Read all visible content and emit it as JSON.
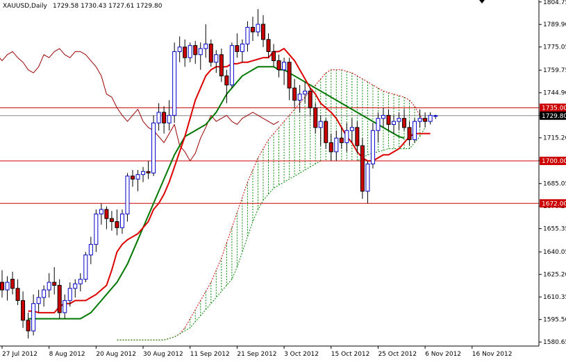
{
  "header": {
    "symbol": "XAUUSD,Daily",
    "ohlc": "1729.58 1730.43 1727.61 1729.80"
  },
  "colors": {
    "bull": "#0000cc",
    "bear": "#cc0000",
    "tenkan": "#dd0000",
    "kijun": "#007700",
    "chikou": "#990000",
    "cloud_bull": "#008800",
    "cloud_bear": "#cc0000",
    "level": "#cc0000",
    "price_line": "#888888",
    "tag_fill": "#cc0000",
    "current_tag_fill": "#000000"
  },
  "chart_data": {
    "type": "candlestick",
    "ylim": [
      1578,
      1806
    ],
    "y_ticks": [
      "1804.75",
      "1789.90",
      "1775.05",
      "1759.75",
      "1744.90",
      "1730.05",
      "1715.20",
      "1700.35",
      "1685.05",
      "1670.20",
      "1655.35",
      "1640.05",
      "1625.20",
      "1610.35",
      "1595.50",
      "1580.65"
    ],
    "x_ticks": [
      {
        "label": "27 Jul 2012",
        "index": 0
      },
      {
        "label": "8 Aug 2012",
        "index": 9
      },
      {
        "label": "20 Aug 2012",
        "index": 18
      },
      {
        "label": "30 Aug 2012",
        "index": 27
      },
      {
        "label": "11 Sep 2012",
        "index": 36
      },
      {
        "label": "21 Sep 2012",
        "index": 45
      },
      {
        "label": "3 Oct 2012",
        "index": 54
      },
      {
        "label": "15 Oct 2012",
        "index": 63
      },
      {
        "label": "25 Oct 2012",
        "index": 72
      },
      {
        "label": "6 Nov 2012",
        "index": 81
      },
      {
        "label": "16 Nov 2012",
        "index": 90
      }
    ],
    "candles": [
      [
        1620,
        1628,
        1610,
        1615
      ],
      [
        1615,
        1624,
        1608,
        1620
      ],
      [
        1622,
        1627,
        1612,
        1616
      ],
      [
        1616,
        1622,
        1605,
        1608
      ],
      [
        1608,
        1614,
        1590,
        1595
      ],
      [
        1595,
        1600,
        1583,
        1588
      ],
      [
        1588,
        1612,
        1585,
        1606
      ],
      [
        1606,
        1615,
        1600,
        1610
      ],
      [
        1610,
        1618,
        1604,
        1615
      ],
      [
        1615,
        1626,
        1610,
        1620
      ],
      [
        1620,
        1630,
        1612,
        1618
      ],
      [
        1618,
        1622,
        1596,
        1600
      ],
      [
        1600,
        1612,
        1596,
        1608
      ],
      [
        1608,
        1620,
        1604,
        1616
      ],
      [
        1616,
        1622,
        1610,
        1619
      ],
      [
        1619,
        1626,
        1614,
        1622
      ],
      [
        1622,
        1640,
        1620,
        1638
      ],
      [
        1638,
        1650,
        1632,
        1645
      ],
      [
        1645,
        1668,
        1640,
        1665
      ],
      [
        1665,
        1672,
        1658,
        1668
      ],
      [
        1668,
        1670,
        1655,
        1662
      ],
      [
        1662,
        1667,
        1654,
        1660
      ],
      [
        1660,
        1668,
        1651,
        1656
      ],
      [
        1656,
        1668,
        1652,
        1665
      ],
      [
        1665,
        1692,
        1660,
        1690
      ],
      [
        1690,
        1694,
        1683,
        1688
      ],
      [
        1688,
        1694,
        1680,
        1691
      ],
      [
        1691,
        1696,
        1686,
        1693
      ],
      [
        1693,
        1700,
        1688,
        1692
      ],
      [
        1692,
        1730,
        1690,
        1725
      ],
      [
        1725,
        1738,
        1720,
        1732
      ],
      [
        1732,
        1736,
        1718,
        1725
      ],
      [
        1725,
        1740,
        1720,
        1730
      ],
      [
        1730,
        1778,
        1725,
        1772
      ],
      [
        1772,
        1782,
        1765,
        1775
      ],
      [
        1775,
        1780,
        1762,
        1768
      ],
      [
        1768,
        1778,
        1765,
        1776
      ],
      [
        1776,
        1779,
        1764,
        1770
      ],
      [
        1770,
        1778,
        1760,
        1774
      ],
      [
        1774,
        1790,
        1768,
        1777
      ],
      [
        1777,
        1780,
        1762,
        1765
      ],
      [
        1765,
        1773,
        1758,
        1770
      ],
      [
        1770,
        1774,
        1752,
        1756
      ],
      [
        1756,
        1760,
        1738,
        1750
      ],
      [
        1750,
        1778,
        1748,
        1776
      ],
      [
        1776,
        1784,
        1768,
        1772
      ],
      [
        1772,
        1780,
        1765,
        1777
      ],
      [
        1777,
        1792,
        1772,
        1788
      ],
      [
        1788,
        1795,
        1779,
        1785
      ],
      [
        1785,
        1800,
        1782,
        1790
      ],
      [
        1790,
        1796,
        1775,
        1780
      ],
      [
        1780,
        1784,
        1768,
        1772
      ],
      [
        1772,
        1777,
        1762,
        1766
      ],
      [
        1766,
        1770,
        1755,
        1760
      ],
      [
        1760,
        1768,
        1750,
        1765
      ],
      [
        1765,
        1768,
        1740,
        1748
      ],
      [
        1748,
        1754,
        1735,
        1740
      ],
      [
        1740,
        1750,
        1732,
        1744
      ],
      [
        1744,
        1752,
        1738,
        1746
      ],
      [
        1746,
        1748,
        1730,
        1735
      ],
      [
        1735,
        1738,
        1718,
        1722
      ],
      [
        1722,
        1730,
        1710,
        1726
      ],
      [
        1726,
        1728,
        1708,
        1712
      ],
      [
        1712,
        1718,
        1700,
        1706
      ],
      [
        1706,
        1720,
        1700,
        1715
      ],
      [
        1715,
        1722,
        1708,
        1712
      ],
      [
        1712,
        1725,
        1706,
        1720
      ],
      [
        1720,
        1728,
        1712,
        1722
      ],
      [
        1722,
        1726,
        1705,
        1710
      ],
      [
        1710,
        1715,
        1675,
        1680
      ],
      [
        1680,
        1700,
        1672,
        1698
      ],
      [
        1698,
        1725,
        1695,
        1720
      ],
      [
        1720,
        1732,
        1712,
        1728
      ],
      [
        1728,
        1735,
        1722,
        1730
      ],
      [
        1730,
        1734,
        1720,
        1724
      ],
      [
        1724,
        1730,
        1718,
        1726
      ],
      [
        1726,
        1732,
        1720,
        1728
      ],
      [
        1728,
        1734,
        1720,
        1722
      ],
      [
        1722,
        1726,
        1710,
        1714
      ],
      [
        1714,
        1728,
        1712,
        1726
      ],
      [
        1726,
        1734,
        1722,
        1728
      ],
      [
        1728,
        1732,
        1722,
        1726
      ],
      [
        1726,
        1732,
        1724,
        1730
      ],
      [
        1729.58,
        1730.43,
        1727.61,
        1729.8
      ]
    ],
    "tenkan": [
      1601,
      1601,
      1600,
      1600,
      1600,
      1600,
      1604,
      1606,
      1606,
      1608,
      1608,
      1608,
      1610,
      1612,
      1615,
      1618,
      1628,
      1640,
      1645,
      1648,
      1650,
      1652,
      1656,
      1660,
      1668,
      1672,
      1678,
      1686,
      1696,
      1706,
      1716,
      1728,
      1740,
      1748,
      1756,
      1760,
      1762,
      1762,
      1762,
      1764,
      1764,
      1765,
      1765,
      1766,
      1767,
      1768,
      1768,
      1772,
      1772,
      1774,
      1770,
      1766,
      1760,
      1754,
      1748,
      1744,
      1738,
      1735,
      1732,
      1728,
      1722,
      1716,
      1712,
      1706,
      1702,
      1700,
      1700,
      1702,
      1704,
      1704,
      1706,
      1708,
      1712,
      1716,
      1718,
      1718,
      1718,
      1718
    ],
    "tenkan_x_offset": 5,
    "kijun": [
      1596,
      1596,
      1596,
      1596,
      1596,
      1596,
      1596,
      1596,
      1596,
      1596,
      1596,
      1598,
      1600,
      1604,
      1608,
      1612,
      1616,
      1620,
      1626,
      1632,
      1640,
      1648,
      1656,
      1664,
      1672,
      1680,
      1688,
      1696,
      1704,
      1710,
      1716,
      1718,
      1720,
      1722,
      1724,
      1728,
      1732,
      1738,
      1744,
      1748,
      1752,
      1756,
      1758,
      1760,
      1762,
      1762,
      1762,
      1762,
      1760,
      1760,
      1758,
      1756,
      1754,
      1752,
      1750,
      1748,
      1746,
      1744,
      1742,
      1740,
      1738,
      1736,
      1734,
      1732,
      1730,
      1728,
      1726,
      1724,
      1722,
      1720,
      1718,
      1716,
      1715
    ],
    "kijun_x_offset": 5,
    "chikou": [
      1760,
      1768,
      1772,
      1770,
      1766,
      1770,
      1772,
      1768,
      1765,
      1760,
      1758,
      1762,
      1770,
      1768,
      1772,
      1774,
      1770,
      1768,
      1772,
      1772,
      1770,
      1766,
      1762,
      1756,
      1744,
      1742,
      1735,
      1730,
      1726,
      1730,
      1734,
      1726,
      1722,
      1720,
      1716,
      1712,
      1718,
      1724,
      1710,
      1706,
      1700,
      1705,
      1715,
      1722,
      1730,
      1726,
      1728,
      1730,
      1726,
      1724,
      1728,
      1730,
      1732,
      1730,
      1728,
      1726,
      1724,
      1726
    ],
    "chikou_x_offset": -4,
    "cloud_upper": [
      1582,
      1582,
      1582,
      1582,
      1582,
      1582,
      1582,
      1582,
      1582,
      1582,
      1583,
      1584,
      1586,
      1590,
      1596,
      1602,
      1608,
      1614,
      1620,
      1628,
      1636,
      1646,
      1656,
      1666,
      1676,
      1686,
      1694,
      1702,
      1708,
      1714,
      1718,
      1722,
      1726,
      1730,
      1734,
      1738,
      1742,
      1746,
      1750,
      1754,
      1758,
      1760,
      1760,
      1760,
      1759,
      1758,
      1756,
      1754,
      1752,
      1750,
      1748,
      1746,
      1745,
      1744,
      1743,
      1742,
      1740,
      1736,
      1730,
      1725
    ],
    "cloud_lower": [
      1582,
      1582,
      1582,
      1582,
      1582,
      1582,
      1582,
      1582,
      1582,
      1582,
      1583,
      1584,
      1586,
      1588,
      1590,
      1594,
      1598,
      1602,
      1606,
      1610,
      1614,
      1618,
      1622,
      1630,
      1640,
      1650,
      1660,
      1668,
      1674,
      1678,
      1682,
      1684,
      1686,
      1688,
      1690,
      1692,
      1694,
      1696,
      1698,
      1700,
      1700,
      1700,
      1700,
      1700,
      1700,
      1700,
      1700,
      1702,
      1704,
      1705,
      1706,
      1707,
      1708,
      1708,
      1708,
      1708,
      1708,
      1712,
      1716,
      1722
    ],
    "cloud_x_offset": 22,
    "levels": [
      {
        "label": "1735.00",
        "value": 1735.0
      },
      {
        "label": "1700.00",
        "value": 1700.0
      },
      {
        "label": "1672.00",
        "value": 1672.0
      }
    ],
    "current": {
      "label": "1729.80",
      "value": 1729.8
    }
  }
}
